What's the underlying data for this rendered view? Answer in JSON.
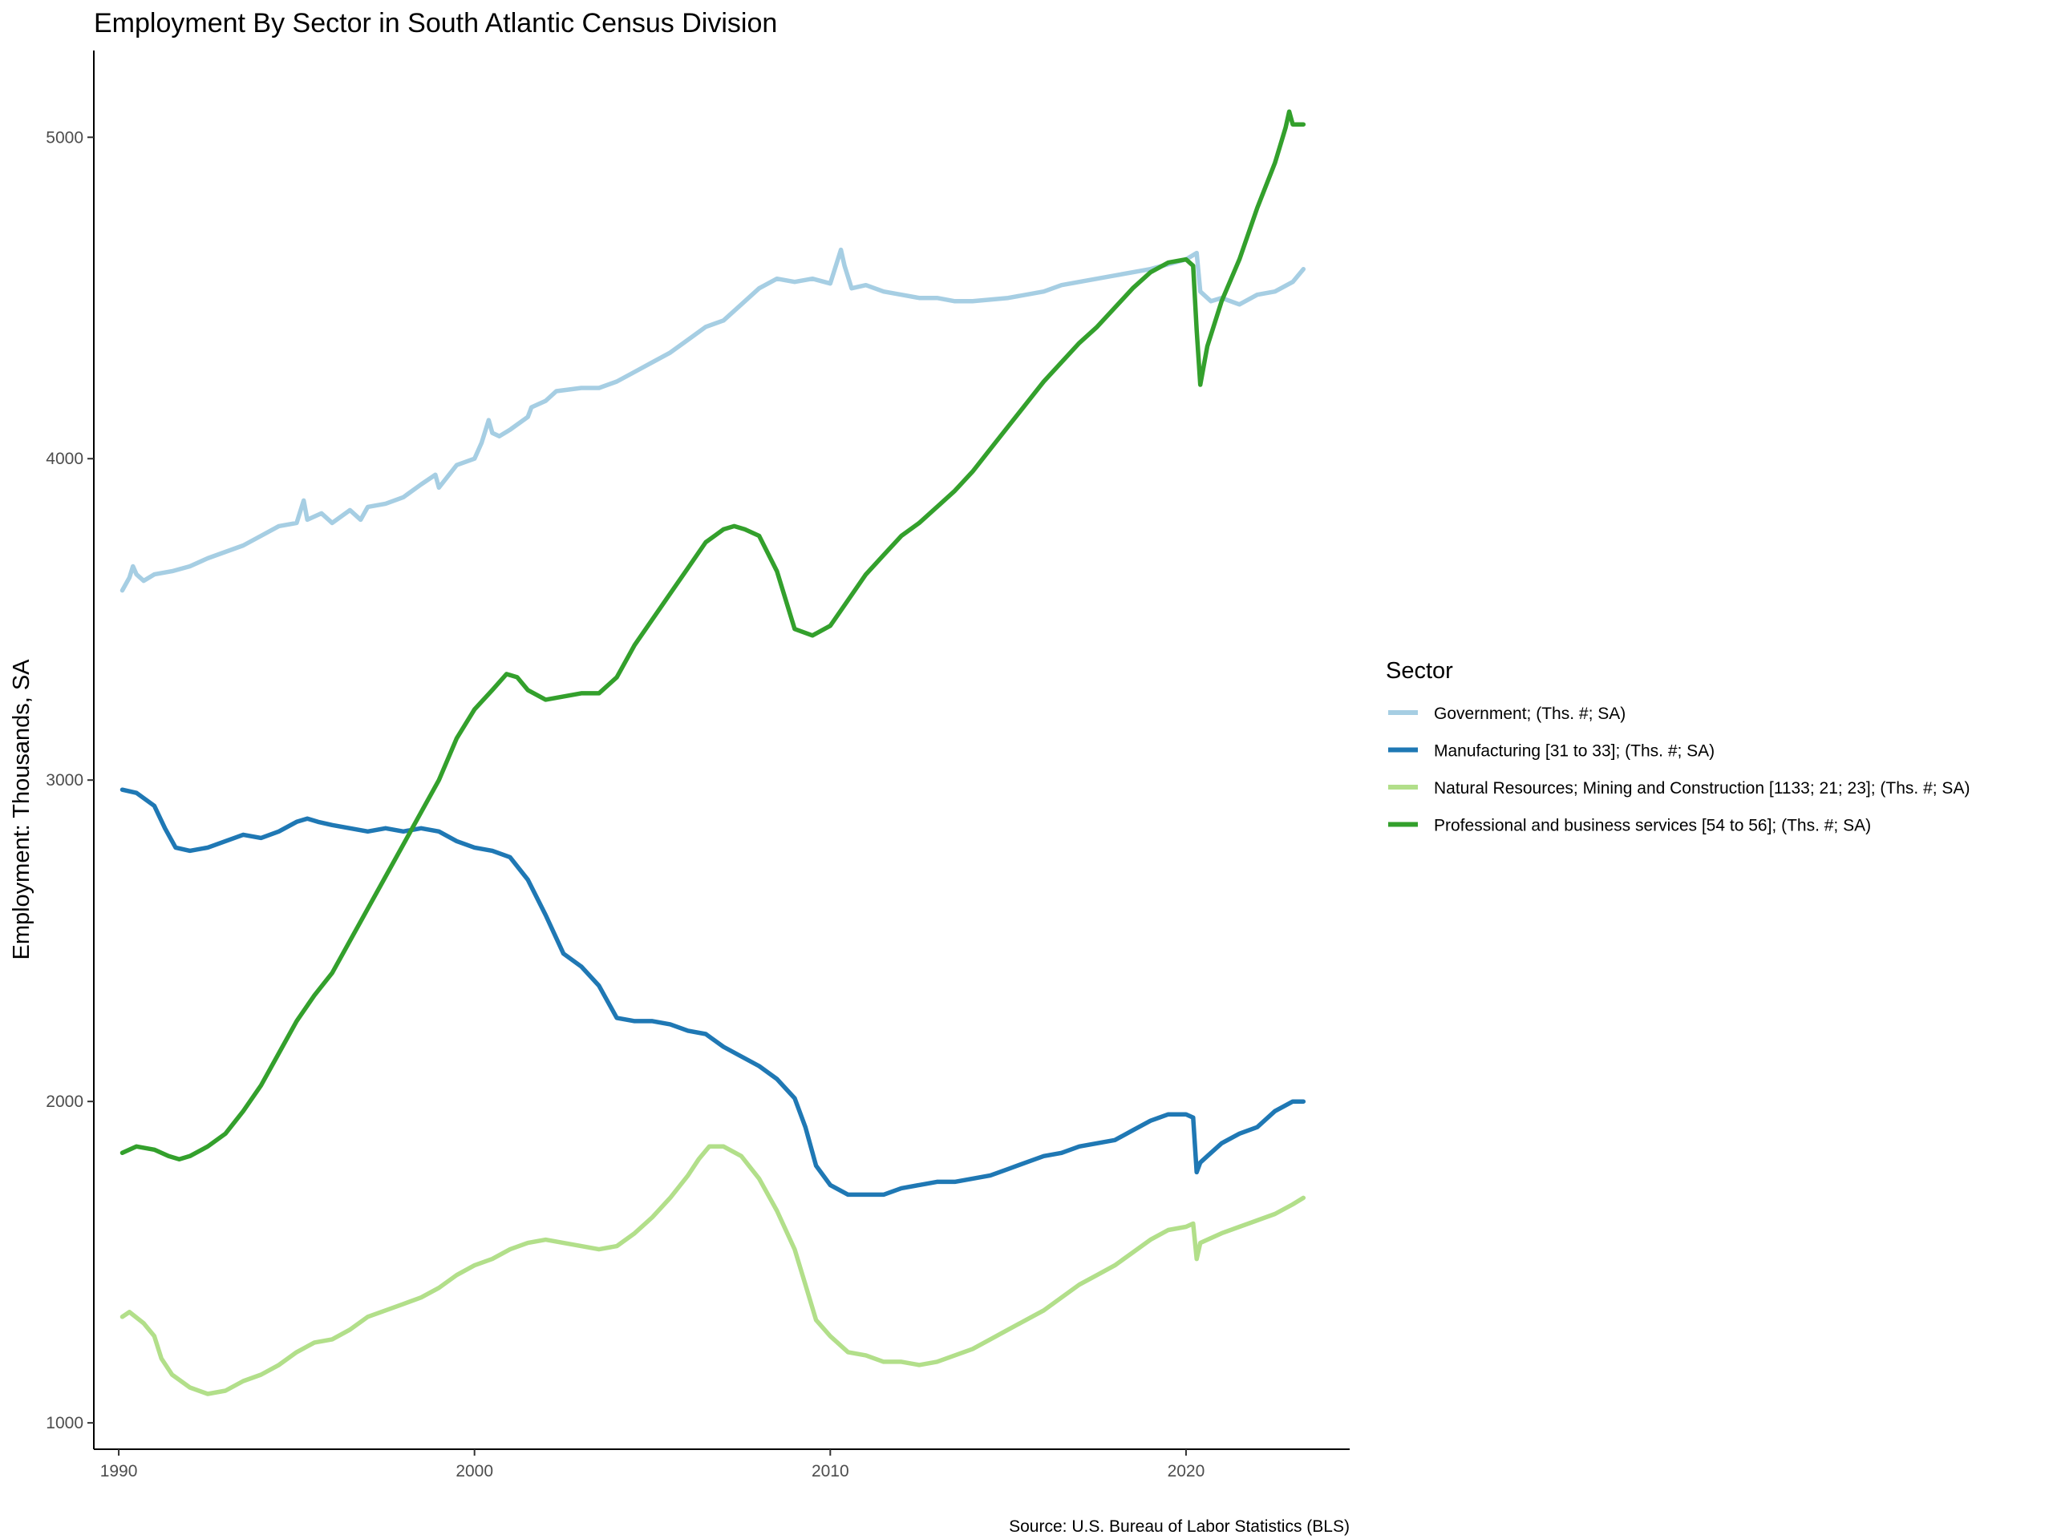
{
  "chart_data": {
    "type": "line",
    "title": "Employment By Sector in South Atlantic Census Division",
    "xlabel": "",
    "ylabel": "Employment: Thousands, SA",
    "caption": "Source: U.S. Bureau of Labor Statistics (BLS)",
    "xlim": [
      1989.3,
      2024.6
    ],
    "ylim": [
      918,
      5270
    ],
    "x_ticks": [
      1990,
      2000,
      2010,
      2020
    ],
    "y_ticks": [
      1000,
      2000,
      3000,
      4000,
      5000
    ],
    "grid": false,
    "legend": {
      "title": "Sector",
      "position": "right"
    },
    "series": [
      {
        "name": "Government; (Ths. #; SA)",
        "color": "#a6cee3",
        "x": [
          1990.1,
          1990.3,
          1990.4,
          1990.5,
          1990.7,
          1991.0,
          1991.5,
          1992.0,
          1992.5,
          1993.0,
          1993.5,
          1994.0,
          1994.5,
          1995.0,
          1995.2,
          1995.3,
          1995.7,
          1996.0,
          1996.5,
          1996.8,
          1997.0,
          1997.5,
          1998.0,
          1998.5,
          1998.9,
          1999.0,
          1999.5,
          2000.0,
          2000.2,
          2000.4,
          2000.5,
          2000.7,
          2001.0,
          2001.5,
          2001.6,
          2002.0,
          2002.3,
          2003.0,
          2003.5,
          2004.0,
          2004.5,
          2005.0,
          2005.5,
          2006.0,
          2006.5,
          2007.0,
          2007.5,
          2008.0,
          2008.5,
          2009.0,
          2009.5,
          2010.0,
          2010.3,
          2010.4,
          2010.6,
          2011.0,
          2011.5,
          2012.0,
          2012.5,
          2013.0,
          2013.5,
          2014.0,
          2015.0,
          2016.0,
          2016.5,
          2017.0,
          2018.0,
          2019.0,
          2020.0,
          2020.3,
          2020.4,
          2020.7,
          2021.0,
          2021.5,
          2022.0,
          2022.5,
          2023.0,
          2023.3
        ],
        "values": [
          3590,
          3630,
          3665,
          3640,
          3620,
          3640,
          3650,
          3665,
          3690,
          3710,
          3730,
          3760,
          3790,
          3800,
          3870,
          3810,
          3830,
          3800,
          3840,
          3810,
          3850,
          3860,
          3880,
          3920,
          3950,
          3910,
          3980,
          4000,
          4050,
          4120,
          4080,
          4070,
          4090,
          4130,
          4160,
          4180,
          4210,
          4220,
          4220,
          4240,
          4270,
          4300,
          4330,
          4370,
          4410,
          4430,
          4480,
          4530,
          4560,
          4550,
          4560,
          4545,
          4650,
          4600,
          4530,
          4540,
          4520,
          4510,
          4500,
          4500,
          4490,
          4490,
          4500,
          4520,
          4540,
          4550,
          4570,
          4590,
          4620,
          4640,
          4520,
          4490,
          4500,
          4480,
          4510,
          4520,
          4550,
          4590
        ]
      },
      {
        "name": "Manufacturing [31 to 33]; (Ths. #; SA)",
        "color": "#1f78b4",
        "x": [
          1990.1,
          1990.5,
          1991.0,
          1991.3,
          1991.6,
          1992.0,
          1992.5,
          1993.0,
          1993.5,
          1994.0,
          1994.5,
          1995.0,
          1995.3,
          1995.6,
          1996.0,
          1996.5,
          1997.0,
          1997.5,
          1998.0,
          1998.5,
          1999.0,
          1999.5,
          2000.0,
          2000.5,
          2001.0,
          2001.5,
          2002.0,
          2002.5,
          2003.0,
          2003.5,
          2004.0,
          2004.5,
          2005.0,
          2005.5,
          2006.0,
          2006.5,
          2007.0,
          2007.5,
          2008.0,
          2008.5,
          2009.0,
          2009.3,
          2009.6,
          2010.0,
          2010.5,
          2011.0,
          2011.5,
          2012.0,
          2012.5,
          2013.0,
          2013.5,
          2014.0,
          2014.5,
          2015.0,
          2015.5,
          2016.0,
          2016.5,
          2017.0,
          2017.5,
          2018.0,
          2018.5,
          2019.0,
          2019.5,
          2020.0,
          2020.2,
          2020.3,
          2020.4,
          2020.6,
          2021.0,
          2021.5,
          2022.0,
          2022.5,
          2023.0,
          2023.3
        ],
        "values": [
          2970,
          2960,
          2920,
          2850,
          2790,
          2780,
          2790,
          2810,
          2830,
          2820,
          2840,
          2870,
          2880,
          2870,
          2860,
          2850,
          2840,
          2850,
          2840,
          2850,
          2840,
          2810,
          2790,
          2780,
          2760,
          2690,
          2580,
          2460,
          2420,
          2360,
          2260,
          2250,
          2250,
          2240,
          2220,
          2210,
          2170,
          2140,
          2110,
          2070,
          2010,
          1920,
          1800,
          1740,
          1710,
          1710,
          1710,
          1730,
          1740,
          1750,
          1750,
          1760,
          1770,
          1790,
          1810,
          1830,
          1840,
          1860,
          1870,
          1880,
          1910,
          1940,
          1960,
          1960,
          1950,
          1780,
          1810,
          1830,
          1870,
          1900,
          1920,
          1970,
          2000,
          2000
        ]
      },
      {
        "name": "Natural Resources; Mining and Construction [1133; 21; 23]; (Ths. #; SA)",
        "color": "#b2df8a",
        "x": [
          1990.1,
          1990.3,
          1990.7,
          1991.0,
          1991.2,
          1991.5,
          1992.0,
          1992.5,
          1993.0,
          1993.5,
          1994.0,
          1994.5,
          1995.0,
          1995.5,
          1996.0,
          1996.5,
          1997.0,
          1997.5,
          1998.0,
          1998.5,
          1999.0,
          1999.5,
          2000.0,
          2000.5,
          2001.0,
          2001.5,
          2002.0,
          2002.5,
          2003.0,
          2003.5,
          2004.0,
          2004.5,
          2005.0,
          2005.5,
          2006.0,
          2006.3,
          2006.6,
          2007.0,
          2007.5,
          2008.0,
          2008.5,
          2009.0,
          2009.3,
          2009.6,
          2010.0,
          2010.5,
          2011.0,
          2011.5,
          2012.0,
          2012.5,
          2013.0,
          2013.5,
          2014.0,
          2014.5,
          2015.0,
          2015.5,
          2016.0,
          2016.5,
          2017.0,
          2017.5,
          2018.0,
          2018.5,
          2019.0,
          2019.5,
          2020.0,
          2020.2,
          2020.3,
          2020.4,
          2020.6,
          2021.0,
          2021.5,
          2022.0,
          2022.5,
          2023.0,
          2023.3
        ],
        "values": [
          1330,
          1345,
          1310,
          1270,
          1200,
          1150,
          1110,
          1090,
          1100,
          1130,
          1150,
          1180,
          1220,
          1250,
          1260,
          1290,
          1330,
          1350,
          1370,
          1390,
          1420,
          1460,
          1490,
          1510,
          1540,
          1560,
          1570,
          1560,
          1550,
          1540,
          1550,
          1590,
          1640,
          1700,
          1770,
          1820,
          1860,
          1860,
          1830,
          1760,
          1660,
          1540,
          1430,
          1320,
          1270,
          1220,
          1210,
          1190,
          1190,
          1180,
          1190,
          1210,
          1230,
          1260,
          1290,
          1320,
          1350,
          1390,
          1430,
          1460,
          1490,
          1530,
          1570,
          1600,
          1610,
          1620,
          1510,
          1560,
          1570,
          1590,
          1610,
          1630,
          1650,
          1680,
          1700
        ]
      },
      {
        "name": "Professional and business services [54 to 56]; (Ths. #; SA)",
        "color": "#33a02c",
        "x": [
          1990.1,
          1990.5,
          1991.0,
          1991.4,
          1991.7,
          1992.0,
          1992.5,
          1993.0,
          1993.5,
          1994.0,
          1994.5,
          1995.0,
          1995.5,
          1996.0,
          1996.5,
          1997.0,
          1997.5,
          1998.0,
          1998.5,
          1999.0,
          1999.5,
          2000.0,
          2000.5,
          2000.9,
          2001.2,
          2001.5,
          2002.0,
          2002.5,
          2003.0,
          2003.5,
          2004.0,
          2004.5,
          2005.0,
          2005.5,
          2006.0,
          2006.5,
          2007.0,
          2007.3,
          2007.6,
          2008.0,
          2008.5,
          2009.0,
          2009.5,
          2010.0,
          2010.5,
          2011.0,
          2011.5,
          2012.0,
          2012.5,
          2013.0,
          2013.5,
          2014.0,
          2014.5,
          2015.0,
          2015.5,
          2016.0,
          2016.5,
          2017.0,
          2017.5,
          2018.0,
          2018.5,
          2019.0,
          2019.5,
          2020.0,
          2020.2,
          2020.3,
          2020.4,
          2020.6,
          2021.0,
          2021.5,
          2022.0,
          2022.5,
          2022.8,
          2022.9,
          2023.0,
          2023.3
        ],
        "values": [
          1840,
          1860,
          1850,
          1830,
          1820,
          1830,
          1860,
          1900,
          1970,
          2050,
          2150,
          2250,
          2330,
          2400,
          2500,
          2600,
          2700,
          2800,
          2900,
          3000,
          3130,
          3220,
          3280,
          3330,
          3320,
          3280,
          3250,
          3260,
          3270,
          3270,
          3320,
          3420,
          3500,
          3580,
          3660,
          3740,
          3780,
          3790,
          3780,
          3760,
          3650,
          3470,
          3450,
          3480,
          3560,
          3640,
          3700,
          3760,
          3800,
          3850,
          3900,
          3960,
          4030,
          4100,
          4170,
          4240,
          4300,
          4360,
          4410,
          4470,
          4530,
          4580,
          4610,
          4620,
          4600,
          4400,
          4230,
          4350,
          4490,
          4620,
          4780,
          4920,
          5030,
          5080,
          5040,
          5040
        ]
      }
    ]
  }
}
